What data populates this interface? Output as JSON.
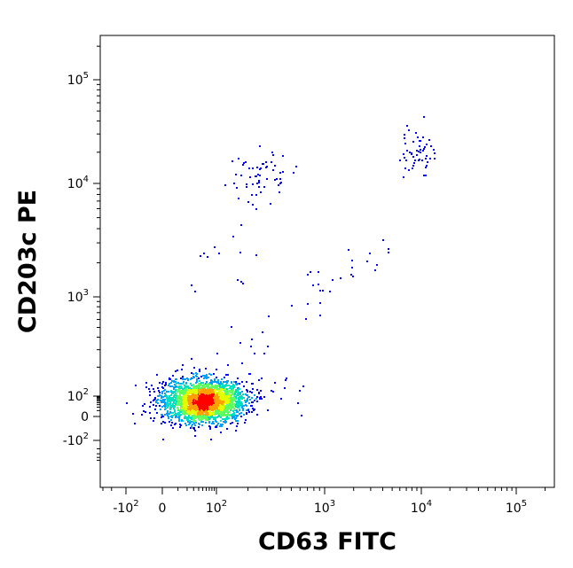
{
  "chart_data": {
    "type": "scatter",
    "style": "density-colored flow cytometry dot plot",
    "xlabel": "CD63 FITC",
    "ylabel": "CD203c PE",
    "x_scale": "biexponential (logicle)",
    "y_scale": "biexponential (logicle)",
    "xlim": [
      -300,
      250000
    ],
    "ylim": [
      -600,
      250000
    ],
    "x_ticks": [
      {
        "value": -100,
        "base": "-10",
        "exp": "2"
      },
      {
        "value": 0,
        "base": "0",
        "exp": ""
      },
      {
        "value": 100,
        "base": "10",
        "exp": "2"
      },
      {
        "value": 1000,
        "base": "10",
        "exp": "3"
      },
      {
        "value": 10000,
        "base": "10",
        "exp": "4"
      },
      {
        "value": 100000,
        "base": "10",
        "exp": "5"
      }
    ],
    "y_ticks": [
      {
        "value": -100,
        "base": "-10",
        "exp": "2"
      },
      {
        "value": 0,
        "base": "0",
        "exp": ""
      },
      {
        "value": 100,
        "base": "10",
        "exp": "2"
      },
      {
        "value": 1000,
        "base": "10",
        "exp": "3"
      },
      {
        "value": 10000,
        "base": "10",
        "exp": "4"
      },
      {
        "value": 100000,
        "base": "10",
        "exp": "5"
      }
    ],
    "density_colors": [
      "#0000ff",
      "#00a0ff",
      "#00e0c0",
      "#60ff60",
      "#e0ff00",
      "#ffa000",
      "#ff0000"
    ],
    "populations": [
      {
        "center_x": 50,
        "center_y": 55,
        "spread_x": 0.3,
        "spread_y": 0.6,
        "relative_size": "main"
      },
      {
        "center_x": 250,
        "center_y": 12000,
        "spread_x": 0.15,
        "spread_y": 0.15,
        "relative_size": "small"
      },
      {
        "center_x": 9000,
        "center_y": 20000,
        "spread_x": 0.1,
        "spread_y": 0.12,
        "relative_size": "small"
      }
    ],
    "grid": false,
    "legend": "none"
  }
}
